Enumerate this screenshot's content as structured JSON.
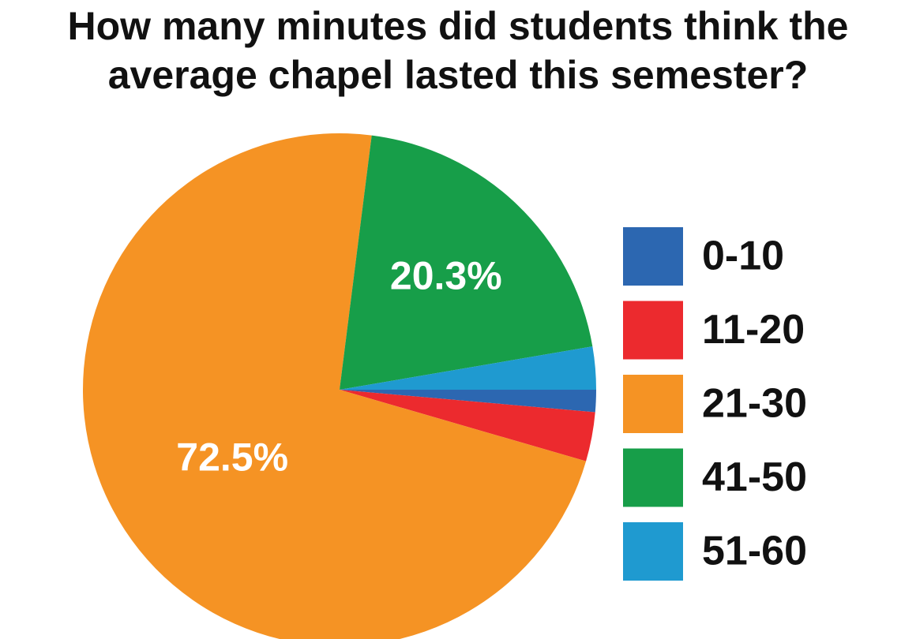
{
  "chart_data": {
    "type": "pie",
    "title": "How many minutes did students think the average chapel lasted this semester?",
    "categories": [
      "0-10",
      "11-20",
      "21-30",
      "41-50",
      "51-60"
    ],
    "values": [
      1.4,
      3.1,
      72.5,
      20.3,
      2.7
    ],
    "value_labels": [
      null,
      null,
      "72.5%",
      "20.3%",
      null
    ],
    "colors": [
      "#2c67b1",
      "#ec2a2e",
      "#f59324",
      "#179e49",
      "#1f9ad0"
    ],
    "legend": "right"
  }
}
